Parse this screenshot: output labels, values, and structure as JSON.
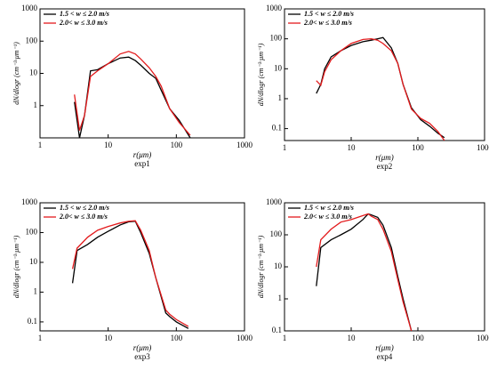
{
  "chart_data": [
    {
      "type": "line",
      "title": "exp1",
      "x_label": "r(μm)",
      "y_label": "dN/dlogr (cm⁻³·μm⁻¹)",
      "log_x": true,
      "log_y": true,
      "legend": "upper left",
      "xlim": [
        1,
        1000
      ],
      "xticks": [
        1,
        10,
        100,
        1000
      ],
      "ylim": [
        0.1,
        1000
      ],
      "yticks": [
        1,
        10,
        100,
        1000
      ],
      "x": [
        3.2,
        3.8,
        4.5,
        5.5,
        7,
        10,
        15,
        20,
        25,
        30,
        40,
        50,
        60,
        80,
        110,
        130,
        160
      ],
      "series": [
        {
          "name": "1.5 < w ≤ 2.0 m/s",
          "color": "#000000",
          "values": [
            1.3,
            0.1,
            0.5,
            12,
            13,
            20,
            30,
            32,
            25,
            18,
            10,
            7,
            3,
            0.8,
            0.35,
            0.2,
            0.1
          ]
        },
        {
          "name": "2.0< w ≤ 3.0 m/s",
          "color": "#e31a1c",
          "values": [
            2.2,
            0.17,
            0.5,
            8,
            12,
            20,
            40,
            48,
            40,
            28,
            15,
            8,
            4,
            0.8,
            0.3,
            0.2,
            0.12
          ]
        }
      ]
    },
    {
      "type": "line",
      "title": "exp2",
      "x_label": "r(μm)",
      "y_label": "dN/dlogr (cm⁻³·μm⁻¹)",
      "log_x": true,
      "log_y": true,
      "legend": "upper left",
      "xlim": [
        1,
        1000
      ],
      "xticks": [
        1,
        10,
        100,
        1000
      ],
      "ylim": [
        0.04,
        1000
      ],
      "yticks": [
        0.1,
        1,
        10,
        100,
        1000
      ],
      "x": [
        3,
        3.5,
        4,
        5,
        7,
        10,
        15,
        20,
        25,
        30,
        40,
        50,
        60,
        80,
        110,
        150,
        200,
        250
      ],
      "series": [
        {
          "name": "1.5 < w ≤ 2.0 m/s",
          "color": "#000000",
          "values": [
            1.5,
            3,
            10,
            25,
            40,
            60,
            80,
            90,
            100,
            110,
            50,
            15,
            3,
            0.5,
            0.2,
            0.12,
            0.07,
            0.05
          ]
        },
        {
          "name": "2.0< w ≤ 3.0 m/s",
          "color": "#e31a1c",
          "values": [
            4,
            2.8,
            8,
            20,
            40,
            70,
            95,
            100,
            90,
            70,
            40,
            15,
            3,
            0.45,
            0.22,
            0.15,
            0.08,
            0.04
          ]
        }
      ]
    },
    {
      "type": "line",
      "title": "exp3",
      "x_label": "r(μm)",
      "y_label": "dN/dlogr (cm⁻³·μm⁻¹)",
      "log_x": true,
      "log_y": true,
      "legend": "upper left",
      "xlim": [
        1,
        1000
      ],
      "xticks": [
        1,
        10,
        100,
        1000
      ],
      "ylim": [
        0.05,
        1000
      ],
      "yticks": [
        0.1,
        1,
        10,
        100,
        1000
      ],
      "x": [
        3,
        3.5,
        5,
        7,
        10,
        15,
        20,
        25,
        30,
        40,
        50,
        70,
        80,
        100,
        150
      ],
      "series": [
        {
          "name": "1.5 < w ≤ 2.0 m/s",
          "color": "#000000",
          "values": [
            2,
            25,
            40,
            70,
            110,
            180,
            230,
            240,
            100,
            20,
            3,
            0.2,
            0.15,
            0.1,
            0.06
          ]
        },
        {
          "name": "2.0< w ≤ 3.0 m/s",
          "color": "#e31a1c",
          "values": [
            6,
            30,
            70,
            120,
            160,
            210,
            240,
            250,
            120,
            25,
            3,
            0.25,
            0.18,
            0.12,
            0.07
          ]
        }
      ]
    },
    {
      "type": "line",
      "title": "exp4",
      "x_label": "r(μm)",
      "y_label": "dN/dlogr (cm⁻³·μm⁻¹)",
      "log_x": true,
      "log_y": true,
      "legend": "upper left",
      "xlim": [
        1,
        1000
      ],
      "xticks": [
        1,
        10,
        100,
        1000
      ],
      "ylim": [
        0.1,
        1000
      ],
      "yticks": [
        0.1,
        1,
        10,
        100,
        1000
      ],
      "x": [
        3,
        3.5,
        5,
        7,
        10,
        15,
        18,
        20,
        25,
        30,
        40,
        50,
        60,
        80
      ],
      "series": [
        {
          "name": "1.5 < w ≤ 2.0 m/s",
          "color": "#000000",
          "values": [
            2.5,
            40,
            70,
            100,
            150,
            300,
            450,
            420,
            350,
            200,
            40,
            5,
            1,
            0.1
          ]
        },
        {
          "name": "2.0< w ≤ 3.0 m/s",
          "color": "#e31a1c",
          "values": [
            10,
            70,
            150,
            250,
            300,
            400,
            450,
            380,
            300,
            150,
            30,
            4,
            0.8,
            0.1
          ]
        }
      ]
    }
  ]
}
